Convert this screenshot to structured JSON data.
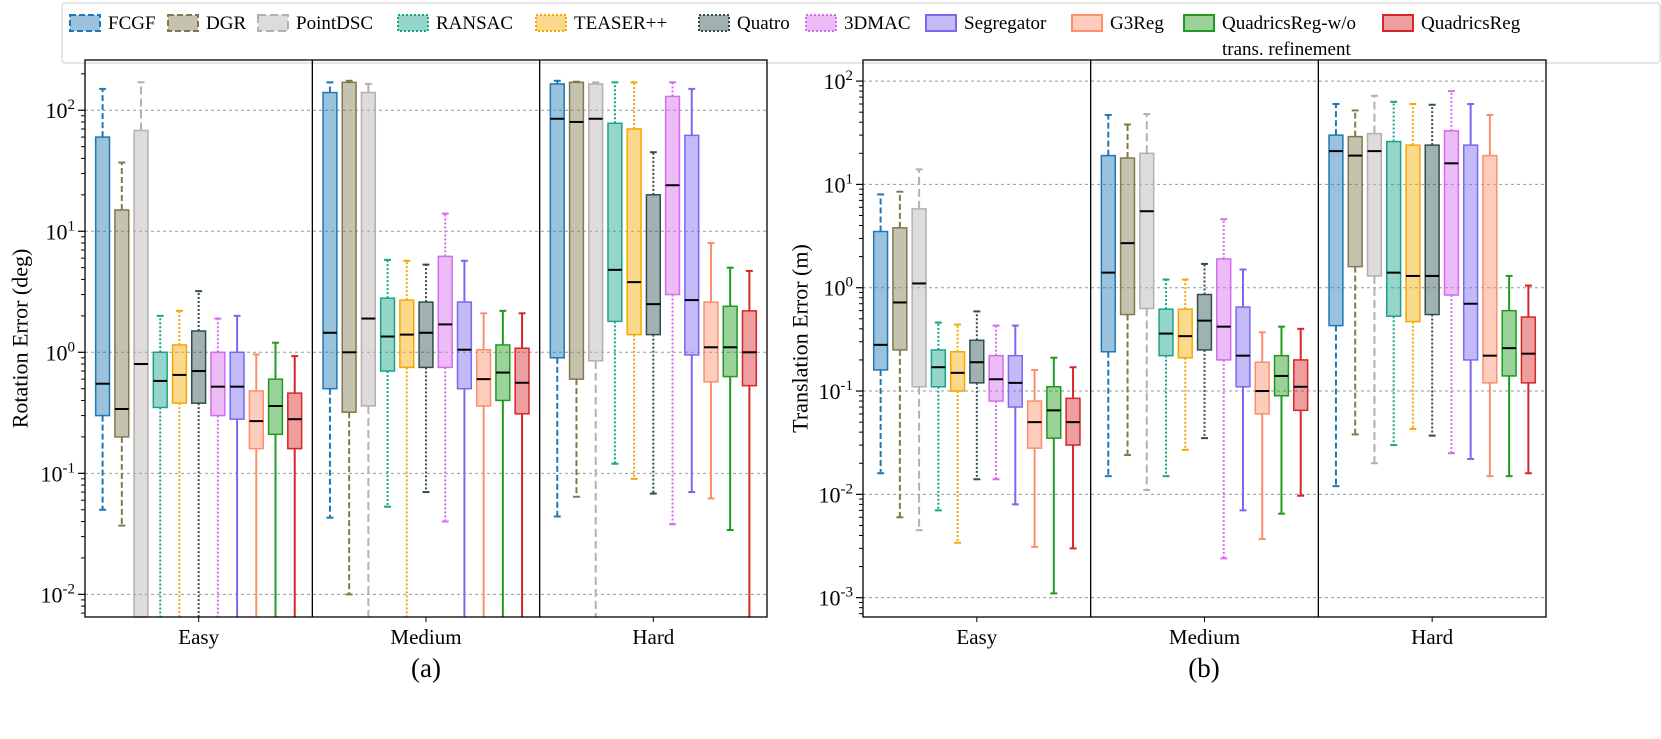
{
  "legend": {
    "entries": [
      {
        "name": "FCGF",
        "color": "#1f77b4",
        "dash": "6,3"
      },
      {
        "name": "DGR",
        "color": "#7f7a4e",
        "dash": "6,3"
      },
      {
        "name": "PointDSC",
        "color": "#b5b0b0",
        "dash": "8,4"
      },
      {
        "name": "RANSAC",
        "color": "#17a589",
        "dash": "2,2"
      },
      {
        "name": "TEASER++",
        "color": "#f5a800",
        "dash": "2,2"
      },
      {
        "name": "Quatro",
        "color": "#2f4f4f",
        "dash": "2,2"
      },
      {
        "name": "3DMAC",
        "color": "#d56bee",
        "dash": "2,2"
      },
      {
        "name": "Segregator",
        "color": "#7b68ee",
        "dash": ""
      },
      {
        "name": "G3Reg",
        "color": "#fa8f6a",
        "dash": ""
      },
      {
        "name": "QuadricsReg-w/o trans. refinement",
        "line1": "QuadricsReg-w/o",
        "line2": "trans. refinement",
        "color": "#1e9b1e",
        "dash": ""
      },
      {
        "name": "QuadricsReg",
        "color": "#d62728",
        "dash": ""
      }
    ]
  },
  "chart_data": [
    {
      "type": "box",
      "scale": "log",
      "panel_label": "(a)",
      "ylabel": "Rotation Error (deg)",
      "ylim": [
        0.0065,
        260
      ],
      "yticks": [
        0.01,
        0.1,
        1,
        10,
        100
      ],
      "yticklabels": [
        "10^{-2}",
        "10^{-1}",
        "10^{0}",
        "10^{1}",
        "10^{2}"
      ],
      "categories": [
        "Easy",
        "Medium",
        "Hard"
      ],
      "series": [
        {
          "name": "FCGF",
          "stats": [
            [
              0.05,
              0.3,
              0.55,
              60,
              150
            ],
            [
              0.043,
              0.5,
              1.45,
              140,
              170
            ],
            [
              0.044,
              0.9,
              85,
              165,
              175
            ]
          ]
        },
        {
          "name": "DGR",
          "stats": [
            [
              0.037,
              0.2,
              0.34,
              15,
              37
            ],
            [
              0.01,
              0.32,
              1.0,
              170,
              175
            ],
            [
              0.064,
              0.6,
              80,
              170,
              172
            ]
          ]
        },
        {
          "name": "PointDSC",
          "stats": [
            [
              0.001,
              0.001,
              0.8,
              68,
              170
            ],
            [
              0.001,
              0.36,
              1.9,
              140,
              165
            ],
            [
              0.001,
              0.85,
              85,
              165,
              170
            ]
          ]
        },
        {
          "name": "RANSAC",
          "stats": [
            [
              0.001,
              0.35,
              0.58,
              1.0,
              2.0
            ],
            [
              0.053,
              0.7,
              1.35,
              2.8,
              5.8
            ],
            [
              0.12,
              1.8,
              4.8,
              78,
              170
            ]
          ]
        },
        {
          "name": "TEASER++",
          "stats": [
            [
              0.001,
              0.38,
              0.65,
              1.15,
              2.2
            ],
            [
              0.001,
              0.75,
              1.4,
              2.7,
              5.7
            ],
            [
              0.09,
              1.4,
              3.8,
              70,
              170
            ]
          ]
        },
        {
          "name": "Quatro",
          "stats": [
            [
              0.001,
              0.38,
              0.7,
              1.5,
              3.2
            ],
            [
              0.07,
              0.75,
              1.45,
              2.6,
              5.3
            ],
            [
              0.068,
              1.4,
              2.5,
              20,
              45
            ]
          ]
        },
        {
          "name": "3DMAC",
          "stats": [
            [
              0.001,
              0.3,
              0.52,
              1.0,
              1.9
            ],
            [
              0.04,
              0.75,
              1.7,
              6.2,
              14
            ],
            [
              0.038,
              3.0,
              24,
              130,
              170
            ]
          ]
        },
        {
          "name": "Segregator",
          "stats": [
            [
              0.001,
              0.28,
              0.52,
              1.0,
              2.0
            ],
            [
              0.001,
              0.5,
              1.05,
              2.6,
              5.7
            ],
            [
              0.07,
              0.95,
              2.7,
              62,
              150
            ]
          ]
        },
        {
          "name": "G3Reg",
          "stats": [
            [
              0.001,
              0.16,
              0.27,
              0.48,
              0.96
            ],
            [
              0.001,
              0.36,
              0.6,
              1.05,
              2.1
            ],
            [
              0.062,
              0.57,
              1.1,
              2.6,
              8.0
            ]
          ]
        },
        {
          "name": "QuadricsReg-w/o trans. refinement",
          "stats": [
            [
              0.001,
              0.21,
              0.36,
              0.6,
              1.2
            ],
            [
              0.001,
              0.4,
              0.68,
              1.15,
              2.2
            ],
            [
              0.034,
              0.63,
              1.1,
              2.4,
              5.0
            ]
          ]
        },
        {
          "name": "QuadricsReg",
          "stats": [
            [
              0.001,
              0.16,
              0.28,
              0.46,
              0.93
            ],
            [
              0.001,
              0.31,
              0.56,
              1.08,
              2.1
            ],
            [
              0.001,
              0.53,
              1.0,
              2.2,
              4.7
            ]
          ]
        }
      ]
    },
    {
      "type": "box",
      "scale": "log",
      "panel_label": "(b)",
      "ylabel": "Translation Error (m)",
      "ylim": [
        0.00065,
        160
      ],
      "yticks": [
        0.001,
        0.01,
        0.1,
        1,
        10,
        100
      ],
      "yticklabels": [
        "10^{-3}",
        "10^{-2}",
        "10^{-1}",
        "10^{0}",
        "10^{1}",
        "10^{2}"
      ],
      "categories": [
        "Easy",
        "Medium",
        "Hard"
      ],
      "series": [
        {
          "name": "FCGF",
          "stats": [
            [
              0.016,
              0.16,
              0.28,
              3.5,
              8.0
            ],
            [
              0.015,
              0.24,
              1.4,
              19,
              47
            ],
            [
              0.012,
              0.43,
              21,
              30,
              60
            ]
          ]
        },
        {
          "name": "DGR",
          "stats": [
            [
              0.006,
              0.25,
              0.72,
              3.8,
              8.5
            ],
            [
              0.024,
              0.55,
              2.7,
              18,
              38
            ],
            [
              0.038,
              1.6,
              19,
              29,
              52
            ]
          ]
        },
        {
          "name": "PointDSC",
          "stats": [
            [
              0.0045,
              0.11,
              1.1,
              5.8,
              14
            ],
            [
              0.011,
              0.63,
              5.5,
              20,
              48
            ],
            [
              0.02,
              1.3,
              21,
              31,
              72
            ]
          ]
        },
        {
          "name": "RANSAC",
          "stats": [
            [
              0.007,
              0.11,
              0.17,
              0.25,
              0.46
            ],
            [
              0.015,
              0.22,
              0.36,
              0.62,
              1.2
            ],
            [
              0.03,
              0.53,
              1.4,
              26,
              63
            ]
          ]
        },
        {
          "name": "TEASER++",
          "stats": [
            [
              0.0034,
              0.1,
              0.15,
              0.24,
              0.44
            ],
            [
              0.027,
              0.21,
              0.34,
              0.62,
              1.2
            ],
            [
              0.043,
              0.47,
              1.3,
              24,
              60
            ]
          ]
        },
        {
          "name": "Quatro",
          "stats": [
            [
              0.014,
              0.12,
              0.19,
              0.31,
              0.59
            ],
            [
              0.035,
              0.25,
              0.48,
              0.86,
              1.7
            ],
            [
              0.037,
              0.55,
              1.3,
              24,
              59
            ]
          ]
        },
        {
          "name": "3DMAC",
          "stats": [
            [
              0.014,
              0.08,
              0.13,
              0.22,
              0.43
            ],
            [
              0.0024,
              0.2,
              0.42,
              1.9,
              4.6
            ],
            [
              0.025,
              0.85,
              16,
              33,
              80
            ]
          ]
        },
        {
          "name": "Segregator",
          "stats": [
            [
              0.008,
              0.07,
              0.12,
              0.22,
              0.43
            ],
            [
              0.007,
              0.11,
              0.22,
              0.65,
              1.5
            ],
            [
              0.022,
              0.2,
              0.7,
              24,
              60
            ]
          ]
        },
        {
          "name": "G3Reg",
          "stats": [
            [
              0.0031,
              0.028,
              0.05,
              0.08,
              0.16
            ],
            [
              0.0037,
              0.06,
              0.1,
              0.19,
              0.37
            ],
            [
              0.015,
              0.12,
              0.22,
              19,
              47
            ]
          ]
        },
        {
          "name": "QuadricsReg-w/o trans. refinement",
          "stats": [
            [
              0.0011,
              0.035,
              0.065,
              0.11,
              0.21
            ],
            [
              0.0065,
              0.09,
              0.14,
              0.22,
              0.42
            ],
            [
              0.015,
              0.14,
              0.26,
              0.6,
              1.3
            ]
          ]
        },
        {
          "name": "QuadricsReg",
          "stats": [
            [
              0.003,
              0.03,
              0.05,
              0.085,
              0.17
            ],
            [
              0.0097,
              0.065,
              0.11,
              0.2,
              0.4
            ],
            [
              0.016,
              0.12,
              0.23,
              0.52,
              1.05
            ]
          ]
        }
      ]
    }
  ]
}
